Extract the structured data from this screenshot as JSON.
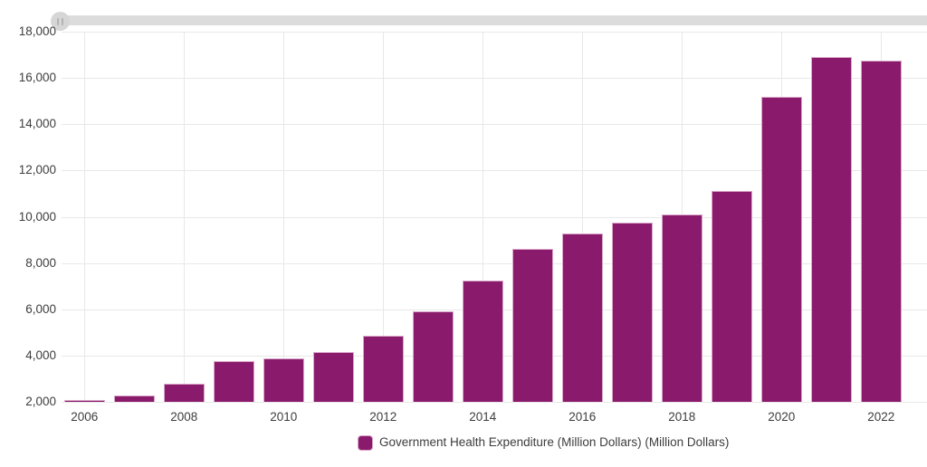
{
  "chart_data": {
    "type": "bar",
    "title": "",
    "series_name": "Government Health Expenditure (Million Dollars) (Million Dollars)",
    "categories": [
      "2006",
      "2007",
      "2008",
      "2009",
      "2010",
      "2011",
      "2012",
      "2013",
      "2014",
      "2015",
      "2016",
      "2017",
      "2018",
      "2019",
      "2020",
      "2021",
      "2022"
    ],
    "values": [
      2040,
      2260,
      2800,
      3750,
      3880,
      4140,
      4860,
      5920,
      7240,
      8620,
      9280,
      9750,
      10090,
      11110,
      15170,
      16890,
      16740
    ],
    "ylim": [
      2000,
      18000
    ],
    "ytick_interval": 2000,
    "ytick_labels": [
      "18,000",
      "16,000",
      "14,000",
      "12,000",
      "10,000",
      "8,000",
      "6,000",
      "4,000",
      "2,000"
    ],
    "xtick_labels": [
      "2006",
      "2008",
      "2010",
      "2012",
      "2014",
      "2016",
      "2018",
      "2020",
      "2022"
    ],
    "grid": "on",
    "legend_position": "bottom",
    "xlabel": "",
    "ylabel": ""
  },
  "colors": {
    "bar_fill": "#8A1A6C",
    "bar_stroke": "#D9A6C9",
    "grid_line": "#E8E8E8",
    "axis_text": "#3D3D3D",
    "scrollbar_track": "#DCDCDC",
    "scrollbar_handle": "#D6D6D6",
    "scrollbar_grip": "#B3B3B3",
    "background": "#FFFFFF"
  },
  "scrollbar": {
    "handle_icon": "grip-vertical-lines-icon"
  },
  "legend": {
    "label": "Government Health Expenditure (Million Dollars) (Million Dollars)"
  }
}
